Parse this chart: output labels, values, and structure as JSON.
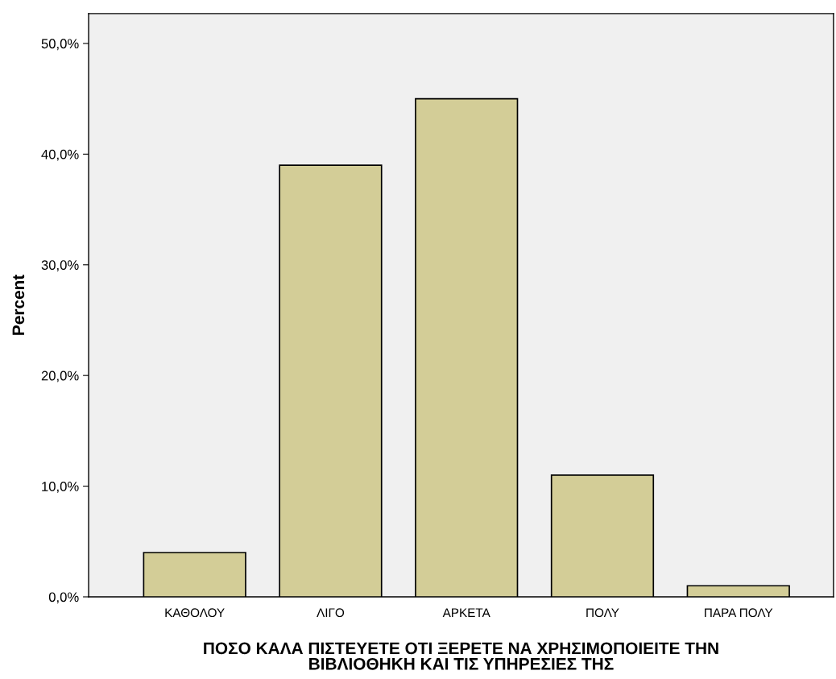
{
  "chart_data": {
    "type": "bar",
    "xlabel": "ΠΟΣΟ ΚΑΛΑ ΠΙΣΤΕΥΕΤΕ ΟΤΙ ΞΕΡΕΤΕ ΝΑ ΧΡΗΣΙΜΟΠΟΙΕΙΤΕ ΤΗΝ\nΒΙΒΛΙΟΘΗΚΗ ΚΑΙ ΤΙΣ ΥΠΗΡΕΣΙΕΣ ΤΗΣ",
    "ylabel": "Percent",
    "categories": [
      "ΚΑΘΟΛΟΥ",
      "ΛΙΓΟ",
      "ΑΡΚΕΤΑ",
      "ΠΟΛΥ",
      "ΠΑΡΑ ΠΟΛΥ"
    ],
    "values": [
      4.0,
      39.0,
      45.0,
      11.0,
      1.0
    ],
    "color": "#d3cd97",
    "ylim": [
      0,
      52.7
    ],
    "yticks": [
      {
        "value": 0,
        "label": "0,0%"
      },
      {
        "value": 10,
        "label": "10,0%"
      },
      {
        "value": 20,
        "label": "20,0%"
      },
      {
        "value": 30,
        "label": "30,0%"
      },
      {
        "value": 40,
        "label": "40,0%"
      },
      {
        "value": 50,
        "label": "50,0%"
      }
    ],
    "grid": false
  }
}
